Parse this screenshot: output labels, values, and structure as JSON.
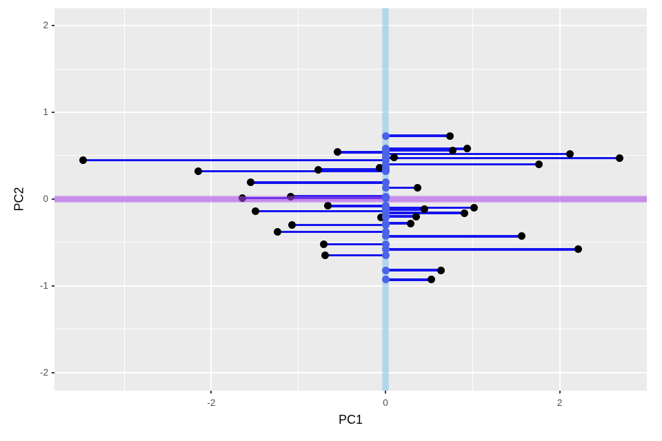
{
  "chart_data": {
    "type": "scatter",
    "title": "",
    "xlabel": "PC1",
    "ylabel": "PC2",
    "xlim": [
      -3.8,
      3.0
    ],
    "ylim": [
      -2.21,
      2.2
    ],
    "grid": true,
    "legend": "none",
    "x_ticks": [
      {
        "value": -2,
        "label": "-2"
      },
      {
        "value": 0,
        "label": "0"
      },
      {
        "value": 2,
        "label": "2"
      }
    ],
    "y_ticks": [
      {
        "value": -2,
        "label": "-2"
      },
      {
        "value": -1,
        "label": "-1"
      },
      {
        "value": 0,
        "label": "0"
      },
      {
        "value": 1,
        "label": "1"
      },
      {
        "value": 2,
        "label": "2"
      }
    ],
    "x_minor": [
      -3,
      -1,
      1,
      3
    ],
    "y_minor": [
      -1.5,
      -0.5,
      0.5,
      1.5
    ],
    "hline_y": 0,
    "vline_x": 0,
    "anchor_x": 0,
    "points": [
      {
        "pc1": -3.47,
        "pc2": 0.45
      },
      {
        "pc1": -2.15,
        "pc2": 0.32
      },
      {
        "pc1": -1.55,
        "pc2": 0.19
      },
      {
        "pc1": -1.64,
        "pc2": 0.01
      },
      {
        "pc1": -1.09,
        "pc2": 0.03
      },
      {
        "pc1": -0.66,
        "pc2": -0.08
      },
      {
        "pc1": -1.49,
        "pc2": -0.14
      },
      {
        "pc1": -1.07,
        "pc2": -0.3
      },
      {
        "pc1": -1.24,
        "pc2": -0.38
      },
      {
        "pc1": -0.71,
        "pc2": -0.52
      },
      {
        "pc1": -0.69,
        "pc2": -0.65
      },
      {
        "pc1": -0.55,
        "pc2": 0.54
      },
      {
        "pc1": -0.77,
        "pc2": 0.34
      },
      {
        "pc1": -0.07,
        "pc2": 0.36
      },
      {
        "pc1": -0.05,
        "pc2": -0.21
      },
      {
        "pc1": 0.74,
        "pc2": 0.73
      },
      {
        "pc1": 0.77,
        "pc2": 0.56
      },
      {
        "pc1": 0.94,
        "pc2": 0.58
      },
      {
        "pc1": 2.12,
        "pc2": 0.52
      },
      {
        "pc1": 2.69,
        "pc2": 0.47
      },
      {
        "pc1": 0.1,
        "pc2": 0.48
      },
      {
        "pc1": 1.76,
        "pc2": 0.4
      },
      {
        "pc1": 0.37,
        "pc2": 0.13
      },
      {
        "pc1": 1.02,
        "pc2": -0.1
      },
      {
        "pc1": 0.45,
        "pc2": -0.12
      },
      {
        "pc1": 0.91,
        "pc2": -0.16
      },
      {
        "pc1": 0.35,
        "pc2": -0.2
      },
      {
        "pc1": 0.29,
        "pc2": -0.28
      },
      {
        "pc1": 1.56,
        "pc2": -0.43
      },
      {
        "pc1": 2.21,
        "pc2": -0.58
      },
      {
        "pc1": 0.64,
        "pc2": -0.82
      },
      {
        "pc1": 0.53,
        "pc2": -0.93
      }
    ],
    "colors": {
      "panel_background": "#EBEBEB",
      "gridline": "#FFFFFF",
      "segment": "#1414EE",
      "point": "#000000",
      "anchor_point": "#4A63E8",
      "hline": "#AA46E6",
      "vline": "#78BEE6",
      "tick_label": "#4D4D4D",
      "tick_mark": "#333333",
      "axis_title": "#000000"
    }
  }
}
